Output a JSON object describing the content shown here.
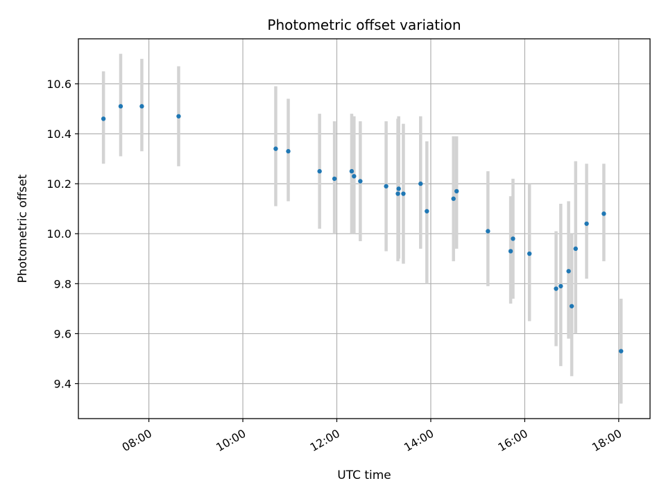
{
  "chart_data": {
    "type": "scatter",
    "title": "Photometric offset variation",
    "xlabel": "UTC time",
    "ylabel": "Photometric offset",
    "x_axis_kind": "time",
    "xlim": [
      "06:30",
      "18:40"
    ],
    "ylim": [
      9.26,
      10.78
    ],
    "x_ticks": [
      "08:00",
      "10:00",
      "12:00",
      "14:00",
      "16:00",
      "18:00"
    ],
    "y_ticks": [
      9.4,
      9.6,
      9.8,
      10.0,
      10.2,
      10.4,
      10.6
    ],
    "y_tick_labels": [
      "9.4",
      "9.6",
      "9.8",
      "10.0",
      "10.2",
      "10.4",
      "10.6"
    ],
    "grid": true,
    "colors": {
      "points": "#1f77b4",
      "errorbars": "#d3d3d3",
      "grid": "#b0b0b0"
    },
    "points": [
      {
        "x": "07:02",
        "y": 10.46,
        "lo": 10.28,
        "hi": 10.65
      },
      {
        "x": "07:24",
        "y": 10.51,
        "lo": 10.31,
        "hi": 10.72
      },
      {
        "x": "07:51",
        "y": 10.51,
        "lo": 10.33,
        "hi": 10.7
      },
      {
        "x": "08:38",
        "y": 10.47,
        "lo": 10.27,
        "hi": 10.67
      },
      {
        "x": "10:42",
        "y": 10.34,
        "lo": 10.11,
        "hi": 10.59
      },
      {
        "x": "10:58",
        "y": 10.33,
        "lo": 10.13,
        "hi": 10.54
      },
      {
        "x": "11:38",
        "y": 10.25,
        "lo": 10.02,
        "hi": 10.48
      },
      {
        "x": "11:57",
        "y": 10.22,
        "lo": 10.0,
        "hi": 10.45
      },
      {
        "x": "12:19",
        "y": 10.25,
        "lo": 10.0,
        "hi": 10.48
      },
      {
        "x": "12:22",
        "y": 10.23,
        "lo": 10.0,
        "hi": 10.47
      },
      {
        "x": "12:30",
        "y": 10.21,
        "lo": 9.97,
        "hi": 10.45
      },
      {
        "x": "13:03",
        "y": 10.19,
        "lo": 9.93,
        "hi": 10.45
      },
      {
        "x": "13:18",
        "y": 10.16,
        "lo": 9.89,
        "hi": 10.46
      },
      {
        "x": "13:19",
        "y": 10.18,
        "lo": 9.9,
        "hi": 10.47
      },
      {
        "x": "13:25",
        "y": 10.16,
        "lo": 9.88,
        "hi": 10.44
      },
      {
        "x": "13:47",
        "y": 10.2,
        "lo": 9.94,
        "hi": 10.47
      },
      {
        "x": "13:55",
        "y": 10.09,
        "lo": 9.8,
        "hi": 10.37
      },
      {
        "x": "14:29",
        "y": 10.14,
        "lo": 9.89,
        "hi": 10.39
      },
      {
        "x": "14:33",
        "y": 10.17,
        "lo": 9.94,
        "hi": 10.39
      },
      {
        "x": "15:13",
        "y": 10.01,
        "lo": 9.79,
        "hi": 10.25
      },
      {
        "x": "15:42",
        "y": 9.93,
        "lo": 9.72,
        "hi": 10.15
      },
      {
        "x": "15:45",
        "y": 9.98,
        "lo": 9.74,
        "hi": 10.22
      },
      {
        "x": "16:06",
        "y": 9.92,
        "lo": 9.65,
        "hi": 10.2
      },
      {
        "x": "16:40",
        "y": 9.78,
        "lo": 9.55,
        "hi": 10.01
      },
      {
        "x": "16:46",
        "y": 9.79,
        "lo": 9.47,
        "hi": 10.12
      },
      {
        "x": "16:56",
        "y": 9.85,
        "lo": 9.58,
        "hi": 10.13
      },
      {
        "x": "17:00",
        "y": 9.71,
        "lo": 9.43,
        "hi": 10.0
      },
      {
        "x": "17:05",
        "y": 9.94,
        "lo": 9.6,
        "hi": 10.29
      },
      {
        "x": "17:19",
        "y": 10.04,
        "lo": 9.82,
        "hi": 10.28
      },
      {
        "x": "17:41",
        "y": 10.08,
        "lo": 9.89,
        "hi": 10.28
      },
      {
        "x": "18:03",
        "y": 9.53,
        "lo": 9.32,
        "hi": 9.74
      }
    ]
  }
}
